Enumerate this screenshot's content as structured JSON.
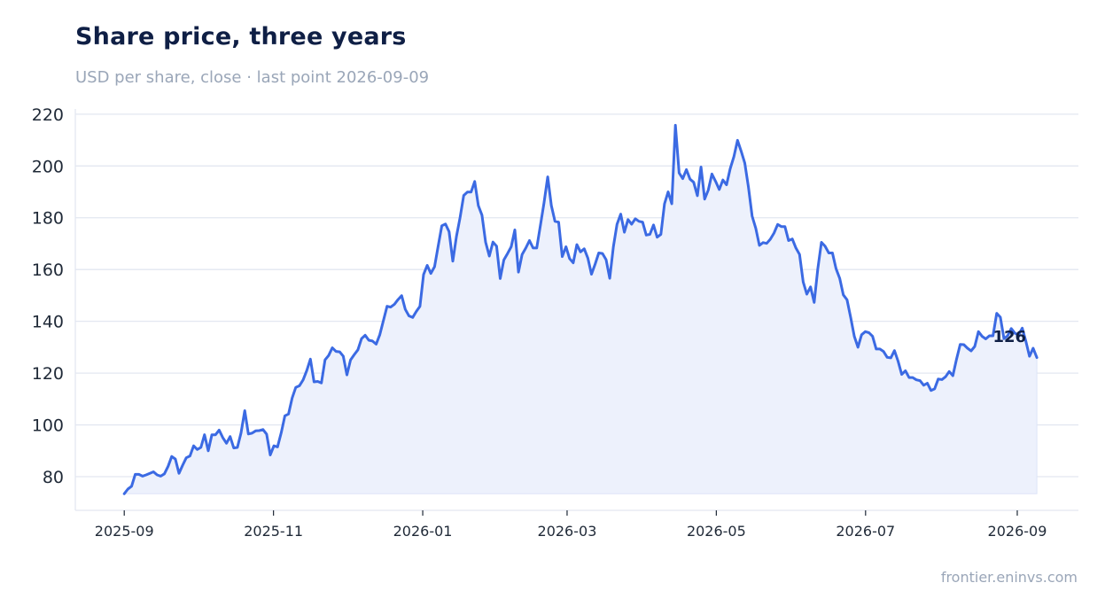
{
  "header": {
    "title": "Share price, three years",
    "subtitle": "USD per share, close · last point 2026-09-09"
  },
  "footer": {
    "source": "frontier.eninvs.com"
  },
  "colors": {
    "line": "#3b6ae3",
    "area": "#edf1fc",
    "grid": "#e3e7f1",
    "axis": "#e3e7f1",
    "title": "#0f1f45",
    "muted": "#9aa6b8"
  },
  "chart_data": {
    "type": "area",
    "title": "Share price, three years",
    "subtitle": "USD per share, close · last point 2026-09-09",
    "xlabel": "",
    "ylabel": "",
    "ylim": [
      67,
      222
    ],
    "xlim": [
      "2025-08-12",
      "2026-09-26"
    ],
    "yticks": [
      80,
      100,
      120,
      140,
      160,
      180,
      200,
      220
    ],
    "xticks": [
      "2025-09",
      "2025-11",
      "2026-01",
      "2026-03",
      "2026-05",
      "2026-07",
      "2026-09"
    ],
    "grid": true,
    "legend": "none",
    "end_label": "126",
    "series": [
      {
        "x_start": "2025-09-01",
        "x_end": "2026-09-09",
        "values": [
          73.4,
          75.2,
          76.3,
          80.9,
          80.9,
          80.2,
          80.7,
          81.3,
          81.9,
          80.7,
          80.2,
          81.1,
          84.0,
          87.8,
          86.8,
          81.3,
          84.4,
          87.3,
          88.0,
          91.9,
          90.5,
          91.3,
          96.2,
          90.0,
          96.2,
          96.2,
          98.0,
          95.1,
          92.9,
          95.5,
          91.1,
          91.3,
          96.9,
          105.5,
          96.5,
          96.8,
          97.7,
          97.8,
          98.2,
          96.4,
          88.4,
          91.9,
          91.5,
          97.0,
          103.5,
          104.2,
          110.4,
          114.5,
          115.1,
          117.4,
          121.0,
          125.4,
          116.6,
          116.8,
          116.2,
          125.1,
          126.8,
          129.8,
          128.4,
          128.2,
          126.5,
          119.3,
          125.1,
          127.1,
          129.0,
          133.3,
          134.6,
          132.7,
          132.4,
          131.2,
          134.8,
          140.3,
          145.8,
          145.5,
          146.6,
          148.4,
          149.9,
          144.6,
          142.1,
          141.5,
          143.8,
          145.8,
          158.1,
          161.6,
          158.5,
          161.1,
          169.1,
          176.9,
          177.6,
          174.6,
          163.2,
          172.8,
          180.1,
          188.6,
          189.9,
          189.9,
          194.0,
          184.7,
          181.0,
          170.6,
          165.2,
          170.6,
          169.0,
          156.5,
          163.7,
          166.2,
          168.8,
          175.3,
          159.0,
          165.8,
          168.3,
          171.2,
          168.3,
          168.3,
          176.9,
          185.7,
          195.8,
          184.7,
          178.6,
          178.3,
          165.0,
          168.8,
          164.2,
          162.6,
          169.6,
          166.8,
          168.0,
          164.4,
          158.2,
          162.1,
          166.4,
          166.2,
          163.8,
          156.6,
          168.8,
          177.5,
          181.4,
          174.4,
          179.3,
          177.5,
          179.6,
          178.6,
          178.3,
          173.3,
          173.6,
          177.2,
          172.5,
          173.6,
          185.4,
          190.0,
          185.4,
          215.7,
          197.3,
          195.1,
          198.6,
          194.9,
          193.7,
          188.5,
          199.6,
          187.2,
          190.7,
          196.9,
          194.0,
          190.9,
          194.6,
          192.7,
          198.9,
          203.6,
          209.9,
          205.7,
          201.1,
          191.9,
          180.6,
          175.9,
          169.3,
          170.4,
          170.1,
          171.7,
          174.1,
          177.4,
          176.6,
          176.6,
          171.2,
          171.8,
          168.3,
          165.8,
          155.2,
          150.5,
          153.3,
          147.3,
          160.3,
          170.5,
          169.0,
          166.4,
          166.4,
          160.3,
          156.6,
          150.2,
          148.3,
          141.5,
          134.2,
          130.0,
          134.8,
          136.0,
          135.6,
          134.2,
          129.3,
          129.3,
          128.4,
          126.1,
          125.9,
          128.7,
          124.6,
          119.5,
          120.9,
          118.3,
          118.3,
          117.4,
          117.1,
          115.3,
          116.1,
          113.3,
          113.9,
          117.7,
          117.5,
          118.6,
          120.6,
          119.0,
          125.3,
          131.1,
          131.0,
          129.6,
          128.6,
          130.3,
          136.0,
          134.2,
          133.2,
          134.4,
          134.4,
          143.1,
          141.6,
          133.3,
          134.4,
          137.2,
          135.4,
          134.8,
          137.4,
          132.3,
          126.5,
          129.6,
          126.0
        ]
      }
    ]
  }
}
